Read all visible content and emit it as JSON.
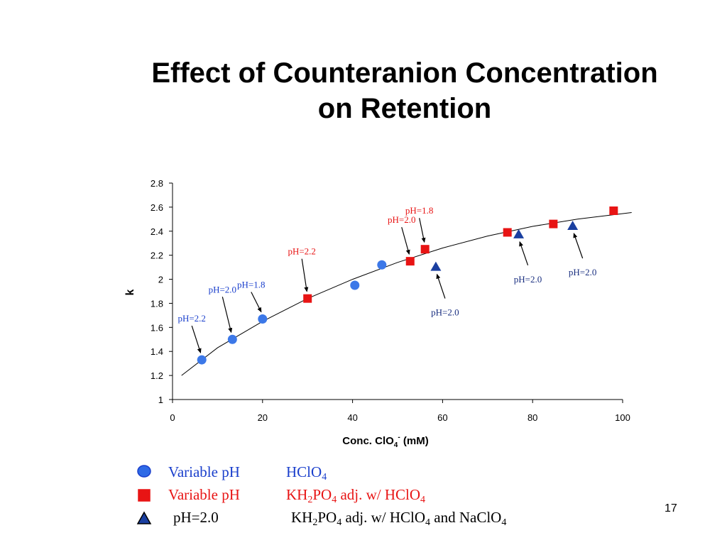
{
  "slide": {
    "title_line1": "Effect of Counteranion Concentration",
    "title_line2": "on Retention",
    "page_number": "17"
  },
  "chart_data": {
    "type": "scatter",
    "xlabel": "Conc. ClO4- (mM)",
    "xlabel_main": "Conc. ClO",
    "xlabel_sub": "4",
    "xlabel_sup": "-",
    "xlabel_tail": " (mM)",
    "ylabel": "k",
    "xlim": [
      0,
      100
    ],
    "ylim": [
      1,
      2.8
    ],
    "xticks": [
      0,
      20,
      40,
      60,
      80,
      100
    ],
    "yticks": [
      1,
      1.2,
      1.4,
      1.6,
      1.8,
      2,
      2.2,
      2.4,
      2.6,
      2.8
    ],
    "grid": false,
    "legend_position": "bottom",
    "series": [
      {
        "marker": "circle",
        "color": "#3c78e8",
        "points": [
          [
            6.5,
            1.33
          ],
          [
            13.3,
            1.5
          ],
          [
            20,
            1.67
          ],
          [
            40.5,
            1.95
          ],
          [
            46.5,
            2.12
          ]
        ]
      },
      {
        "marker": "square",
        "color": "#e81414",
        "points": [
          [
            30,
            1.84
          ],
          [
            52.8,
            2.15
          ],
          [
            56.1,
            2.25
          ],
          [
            74.4,
            2.39
          ],
          [
            84.6,
            2.46
          ],
          [
            98,
            2.57
          ]
        ]
      },
      {
        "marker": "triangle",
        "color": "#1a3fa0",
        "points": [
          [
            58.5,
            2.1
          ],
          [
            76.9,
            2.37
          ],
          [
            88.9,
            2.44
          ]
        ]
      }
    ],
    "fit_curve": [
      [
        2,
        1.2
      ],
      [
        10,
        1.43
      ],
      [
        20,
        1.65
      ],
      [
        30,
        1.84
      ],
      [
        40,
        2.0
      ],
      [
        50,
        2.14
      ],
      [
        60,
        2.26
      ],
      [
        70,
        2.36
      ],
      [
        80,
        2.44
      ],
      [
        90,
        2.5
      ],
      [
        102,
        2.555
      ]
    ],
    "annotations": [
      {
        "text": "pH=2.2",
        "color": "#1a3fcc",
        "target": [
          6.5,
          1.33
        ]
      },
      {
        "text": "pH=2.0",
        "color": "#1a3fcc",
        "target": [
          13.3,
          1.5
        ]
      },
      {
        "text": "pH=1.8",
        "color": "#1a3fcc",
        "target": [
          20,
          1.67
        ]
      },
      {
        "text": "pH=2.2",
        "color": "#e81414",
        "target": [
          30,
          1.84
        ]
      },
      {
        "text": "pH=2.0",
        "color": "#e81414",
        "target": [
          52.8,
          2.15
        ]
      },
      {
        "text": "pH=1.8",
        "color": "#e81414",
        "target": [
          56.1,
          2.25
        ]
      },
      {
        "text": "pH=2.0",
        "color": "#1a2f80",
        "target": [
          58.5,
          2.1
        ]
      },
      {
        "text": "pH=2.0",
        "color": "#1a2f80",
        "target": [
          76.9,
          2.37
        ]
      },
      {
        "text": "pH=2.0",
        "color": "#1a2f80",
        "target": [
          88.9,
          2.44
        ]
      }
    ]
  },
  "legend": [
    {
      "marker": "circle",
      "color": "#1a3fcc",
      "fill": "#2e6ae6",
      "col1": "Variable pH",
      "col2_parts": [
        "HClO",
        "4"
      ]
    },
    {
      "marker": "square",
      "color": "#e81414",
      "fill": "#e81414",
      "col1": "Variable pH",
      "col2_parts": [
        "KH",
        "2",
        "PO",
        "4",
        " adj. w/ HClO",
        "4"
      ]
    },
    {
      "marker": "triangle",
      "color": "#000000",
      "fill": "#1a3fa0",
      "col1": "pH=2.0",
      "col2_parts": [
        "KH",
        "2",
        "PO",
        "4",
        " adj. w/ HClO",
        "4",
        " and NaClO",
        "4"
      ]
    }
  ]
}
